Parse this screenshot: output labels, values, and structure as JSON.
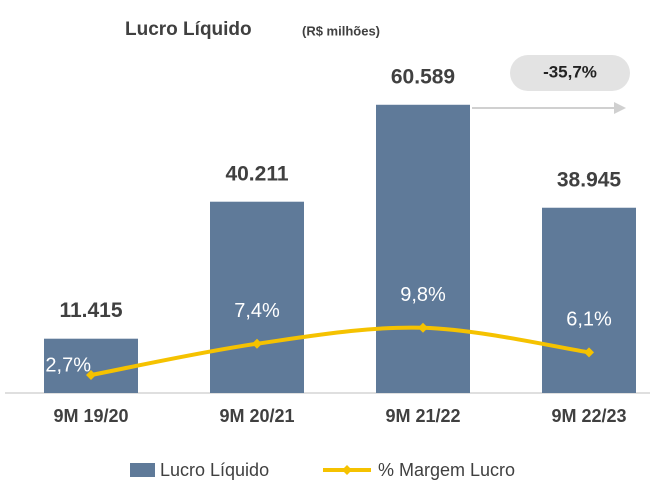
{
  "chart_data": {
    "type": "bar-line",
    "title": "Lucro Líquido",
    "subtitle": "(R$ milhões)",
    "annotation": "-35,7%",
    "categories": [
      "9M 19/20",
      "9M 20/21",
      "9M 21/22",
      "9M 22/23"
    ],
    "series": [
      {
        "name": "Lucro Líquido",
        "type": "bar",
        "color": "#5f7a99",
        "values": [
          11415,
          40211,
          60589,
          38945
        ],
        "value_labels": [
          "11.415",
          "40.211",
          "60.589",
          "38.945"
        ]
      },
      {
        "name": "% Margem Lucro",
        "type": "line",
        "axis": "y2",
        "color": "#f5c200",
        "values": [
          2.7,
          7.4,
          9.8,
          6.1
        ],
        "value_labels": [
          "2,7%",
          "7,4%",
          "9,8%",
          "6,1%"
        ]
      }
    ],
    "ylim": [
      0,
      70000
    ],
    "y2lim": [
      0,
      50
    ]
  }
}
